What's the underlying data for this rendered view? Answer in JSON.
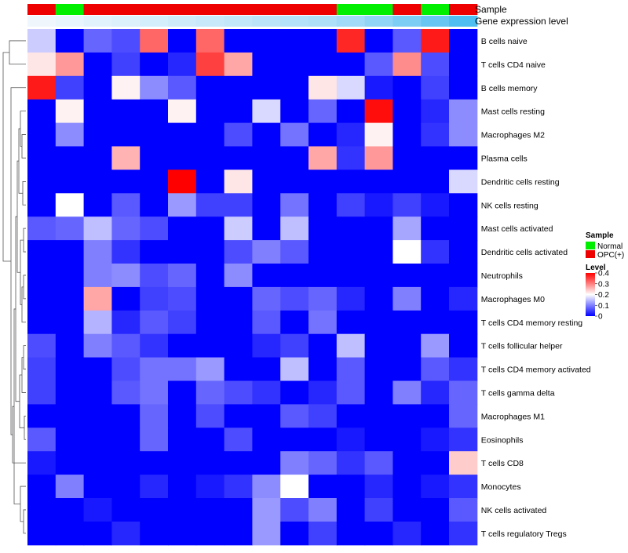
{
  "chart_data": {
    "type": "heatmap",
    "title": "",
    "annotation_labels": [
      "Sample",
      "Gene expression level"
    ],
    "rows": [
      "B cells naive",
      "T cells CD4 naive",
      "B cells memory",
      "Mast cells resting",
      "Macrophages M2",
      "Plasma cells",
      "Dendritic cells resting",
      "NK cells resting",
      "Mast cells activated",
      "Dendritic cells activated",
      "Neutrophils",
      "Macrophages M0",
      "T cells CD4 memory resting",
      "T cells follicular helper",
      "T cells CD4 memory activated",
      "T cells gamma delta",
      "Macrophages M1",
      "Eosinophils",
      "T cells CD8",
      "Monocytes",
      "NK cells activated",
      "T cells regulatory  Tregs"
    ],
    "sample_groups": [
      "OPC(+)",
      "Normal",
      "OPC(+)",
      "OPC(+)",
      "OPC(+)",
      "OPC(+)",
      "OPC(+)",
      "OPC(+)",
      "OPC(+)",
      "OPC(+)",
      "OPC(+)",
      "Normal",
      "Normal",
      "OPC(+)",
      "Normal",
      "OPC(+)"
    ],
    "expression_levels": [
      0.02,
      0.06,
      0.1,
      0.14,
      0.18,
      0.22,
      0.26,
      0.3,
      0.34,
      0.38,
      0.42,
      0.5,
      0.6,
      0.72,
      0.85,
      1.0
    ],
    "values": [
      [
        0.16,
        0.0,
        0.08,
        0.06,
        0.32,
        0.0,
        0.32,
        0.0,
        0.0,
        0.0,
        0.0,
        0.37,
        0.0,
        0.07,
        0.38,
        0.0
      ],
      [
        0.22,
        0.28,
        0.0,
        0.05,
        0.0,
        0.03,
        0.35,
        0.27,
        0.0,
        0.0,
        0.0,
        0.0,
        0.07,
        0.29,
        0.06,
        0.0
      ],
      [
        0.38,
        0.05,
        0.0,
        0.21,
        0.11,
        0.07,
        0.0,
        0.0,
        0.0,
        0.0,
        0.22,
        0.17,
        0.02,
        0.0,
        0.05,
        0.0
      ],
      [
        0.0,
        0.21,
        0.0,
        0.0,
        0.0,
        0.21,
        0.0,
        0.0,
        0.17,
        0.0,
        0.08,
        0.0,
        0.39,
        0.0,
        0.03,
        0.11
      ],
      [
        0.0,
        0.11,
        0.0,
        0.0,
        0.0,
        0.0,
        0.0,
        0.06,
        0.0,
        0.09,
        0.0,
        0.03,
        0.21,
        0.0,
        0.04,
        0.11
      ],
      [
        0.0,
        0.0,
        0.0,
        0.26,
        0.0,
        0.0,
        0.0,
        0.0,
        0.0,
        0.0,
        0.27,
        0.04,
        0.28,
        0.0,
        0.0,
        0.0
      ],
      [
        0.0,
        0.0,
        0.0,
        0.0,
        0.0,
        0.4,
        0.0,
        0.22,
        0.0,
        0.0,
        0.0,
        0.0,
        0.0,
        0.0,
        0.0,
        0.17
      ],
      [
        0.0,
        0.2,
        0.0,
        0.07,
        0.0,
        0.12,
        0.05,
        0.05,
        0.0,
        0.09,
        0.0,
        0.05,
        0.02,
        0.05,
        0.02,
        0.0
      ],
      [
        0.07,
        0.08,
        0.15,
        0.08,
        0.06,
        0.0,
        0.0,
        0.16,
        0.0,
        0.15,
        0.0,
        0.0,
        0.0,
        0.13,
        0.0,
        0.0
      ],
      [
        0.0,
        0.0,
        0.1,
        0.04,
        0.0,
        0.0,
        0.0,
        0.06,
        0.1,
        0.07,
        0.0,
        0.0,
        0.0,
        0.2,
        0.04,
        0.0
      ],
      [
        0.0,
        0.0,
        0.1,
        0.11,
        0.06,
        0.08,
        0.0,
        0.11,
        0.0,
        0.0,
        0.0,
        0.0,
        0.0,
        0.0,
        0.0,
        0.0
      ],
      [
        0.0,
        0.0,
        0.27,
        0.0,
        0.05,
        0.06,
        0.0,
        0.0,
        0.08,
        0.06,
        0.08,
        0.03,
        0.0,
        0.1,
        0.0,
        0.03
      ],
      [
        0.0,
        0.0,
        0.14,
        0.03,
        0.07,
        0.05,
        0.0,
        0.0,
        0.07,
        0.0,
        0.09,
        0.0,
        0.0,
        0.0,
        0.0,
        0.0
      ],
      [
        0.06,
        0.0,
        0.1,
        0.07,
        0.04,
        0.0,
        0.0,
        0.0,
        0.03,
        0.05,
        0.0,
        0.15,
        0.0,
        0.0,
        0.12,
        0.0
      ],
      [
        0.05,
        0.0,
        0.0,
        0.06,
        0.09,
        0.09,
        0.12,
        0.0,
        0.0,
        0.15,
        0.0,
        0.07,
        0.0,
        0.0,
        0.07,
        0.04
      ],
      [
        0.05,
        0.0,
        0.0,
        0.07,
        0.09,
        0.0,
        0.08,
        0.06,
        0.04,
        0.0,
        0.03,
        0.07,
        0.0,
        0.1,
        0.03,
        0.08
      ],
      [
        0.0,
        0.0,
        0.0,
        0.0,
        0.08,
        0.0,
        0.06,
        0.0,
        0.0,
        0.07,
        0.05,
        0.0,
        0.0,
        0.0,
        0.0,
        0.08
      ],
      [
        0.07,
        0.0,
        0.0,
        0.0,
        0.08,
        0.0,
        0.0,
        0.06,
        0.0,
        0.0,
        0.0,
        0.02,
        0.0,
        0.0,
        0.02,
        0.04
      ],
      [
        0.02,
        0.0,
        0.0,
        0.0,
        0.0,
        0.0,
        0.0,
        0.0,
        0.0,
        0.1,
        0.08,
        0.04,
        0.07,
        0.0,
        0.0,
        0.24
      ],
      [
        0.0,
        0.1,
        0.0,
        0.0,
        0.03,
        0.0,
        0.02,
        0.04,
        0.11,
        0.2,
        0.0,
        0.0,
        0.03,
        0.0,
        0.02,
        0.04
      ],
      [
        0.0,
        0.0,
        0.02,
        0.0,
        0.0,
        0.0,
        0.0,
        0.0,
        0.12,
        0.06,
        0.1,
        0.0,
        0.05,
        0.0,
        0.0,
        0.07
      ],
      [
        0.0,
        0.0,
        0.0,
        0.03,
        0.0,
        0.0,
        0.0,
        0.0,
        0.12,
        0.0,
        0.05,
        0.0,
        0.0,
        0.03,
        0.0,
        0.04
      ]
    ],
    "legend": {
      "sample_title": "Sample",
      "sample_entries": [
        {
          "label": "Normal",
          "color": "#00ee00"
        },
        {
          "label": "OPC(+)",
          "color": "#ee0000"
        }
      ],
      "level_title": "Level",
      "level_ticks": [
        "0.4",
        "0.3",
        "0.2",
        "0.1",
        "0"
      ],
      "level_tick_values": [
        0.4,
        0.3,
        0.2,
        0.1,
        0
      ],
      "placement": "right"
    },
    "value_range": [
      0,
      0.4
    ]
  },
  "colors": {
    "low": "#0000ff",
    "mid": "#ffffff",
    "high": "#ff0000",
    "normal": "#00ee00",
    "opc": "#ee0000",
    "expr_low": "#f2f8fd",
    "expr_high": "#4fbef0"
  }
}
